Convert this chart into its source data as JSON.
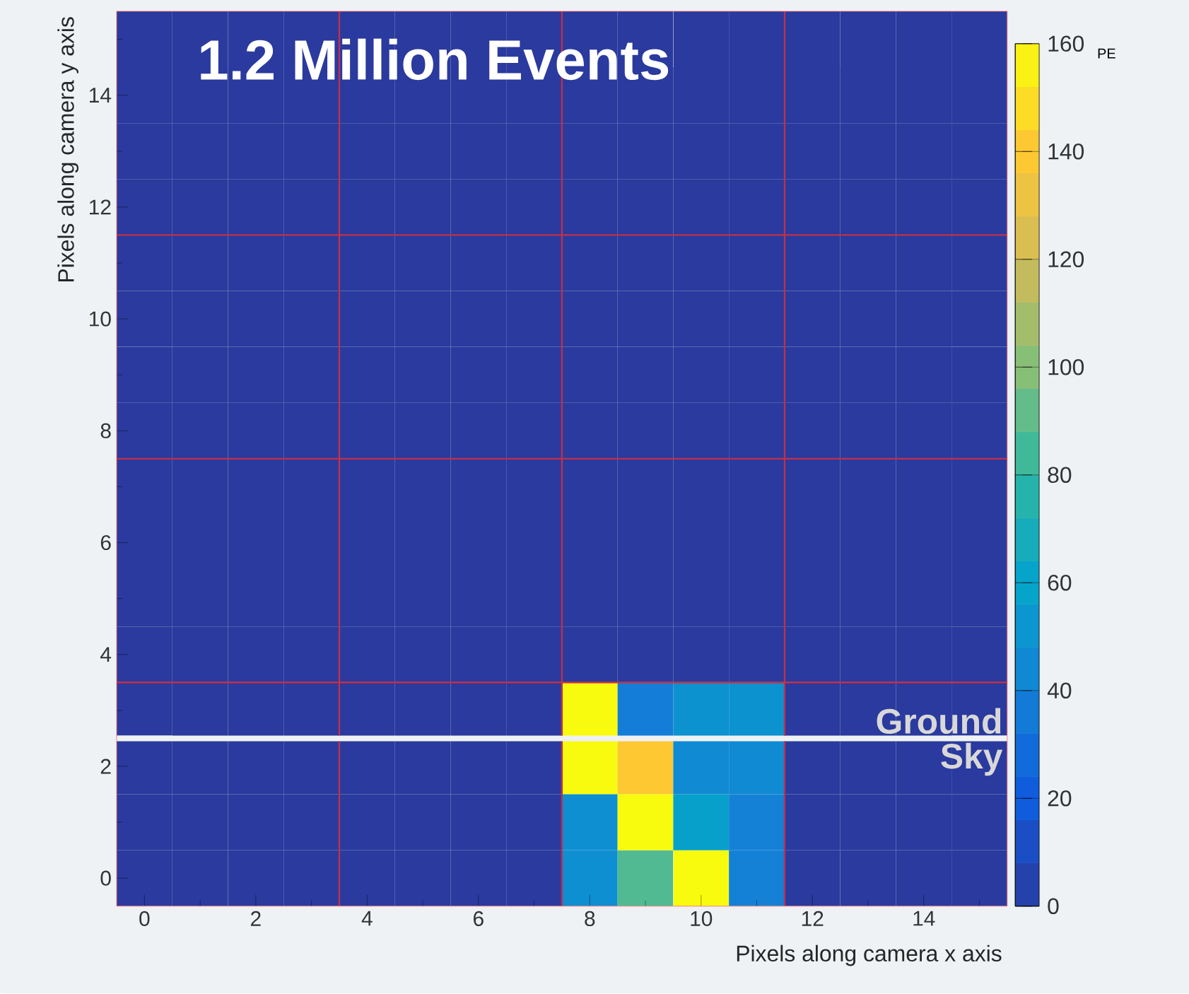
{
  "chart_data": {
    "type": "heatmap",
    "title": "1.2 Million Events",
    "xlabel": "Pixels along camera x axis",
    "ylabel": "Pixels along camera y axis",
    "clabel": "PE",
    "categories": [
      "0",
      null,
      "2",
      null,
      "4",
      null,
      "6",
      null,
      "8",
      null,
      "10",
      null,
      "12",
      null,
      "14",
      null
    ],
    "y_categories": [
      null,
      "14",
      null,
      "12",
      null,
      "10",
      null,
      "8",
      null,
      "6",
      null,
      "4",
      null,
      "2",
      null,
      "0"
    ],
    "cells": [
      [
        0,
        0,
        0,
        0,
        0,
        0,
        0,
        0,
        0,
        0,
        0,
        0,
        0,
        0,
        0,
        0
      ],
      [
        0,
        0,
        0,
        0,
        0,
        0,
        0,
        0,
        0,
        0,
        0,
        0,
        0,
        0,
        0,
        0
      ],
      [
        0,
        0,
        0,
        0,
        0,
        0,
        0,
        0,
        0,
        0,
        0,
        0,
        0,
        0,
        0,
        0
      ],
      [
        0,
        0,
        0,
        0,
        0,
        0,
        0,
        0,
        0,
        0,
        0,
        0,
        0,
        0,
        0,
        0
      ],
      [
        0,
        0,
        0,
        0,
        0,
        0,
        0,
        0,
        0,
        0,
        0,
        0,
        0,
        0,
        0,
        0
      ],
      [
        0,
        0,
        0,
        0,
        0,
        0,
        0,
        0,
        0,
        0,
        0,
        0,
        0,
        0,
        0,
        0
      ],
      [
        0,
        0,
        0,
        0,
        0,
        0,
        0,
        0,
        0,
        0,
        0,
        0,
        0,
        0,
        0,
        0
      ],
      [
        0,
        0,
        0,
        0,
        0,
        0,
        0,
        0,
        0,
        0,
        0,
        0,
        0,
        0,
        0,
        0
      ],
      [
        0,
        0,
        0,
        0,
        0,
        0,
        0,
        0,
        0,
        0,
        0,
        0,
        0,
        0,
        0,
        0
      ],
      [
        0,
        0,
        0,
        0,
        0,
        0,
        0,
        0,
        0,
        0,
        0,
        0,
        0,
        0,
        0,
        0
      ],
      [
        0,
        0,
        0,
        0,
        0,
        0,
        0,
        0,
        0,
        0,
        0,
        0,
        0,
        0,
        0,
        0
      ],
      [
        0,
        0,
        0,
        0,
        0,
        0,
        0,
        0,
        0,
        0,
        0,
        0,
        0,
        0,
        0,
        0
      ],
      [
        0,
        0,
        0,
        0,
        0,
        0,
        0,
        0,
        160,
        38,
        50,
        50,
        0,
        0,
        0,
        0
      ],
      [
        0,
        0,
        0,
        0,
        0,
        0,
        0,
        0,
        160,
        140,
        45,
        45,
        0,
        0,
        0,
        0
      ],
      [
        0,
        0,
        0,
        0,
        0,
        0,
        0,
        0,
        48,
        160,
        58,
        40,
        0,
        0,
        0,
        0
      ],
      [
        0,
        0,
        0,
        0,
        0,
        0,
        0,
        0,
        48,
        88,
        160,
        40,
        0,
        0,
        0,
        0
      ]
    ],
    "clim": [
      0,
      160
    ],
    "cticks": [
      0,
      20,
      40,
      60,
      80,
      100,
      120,
      140,
      160
    ],
    "annotations": [
      "Ground",
      "Sky"
    ]
  }
}
